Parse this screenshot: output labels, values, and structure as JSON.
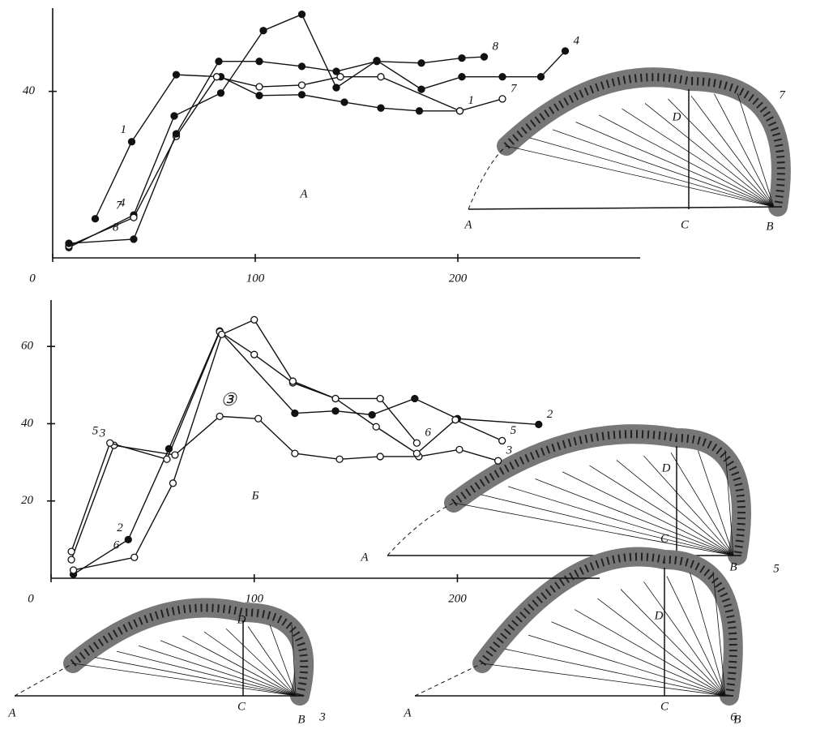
{
  "chart_data": [
    {
      "type": "line",
      "annotation": "A",
      "xlim": [
        0,
        290
      ],
      "ylim": [
        0,
        60
      ],
      "xticks": [
        0,
        100,
        200
      ],
      "yticks": [
        40
      ],
      "series": [
        {
          "name": "1",
          "color": "#111111",
          "marker": "filled",
          "x": [
            21,
            39,
            61,
            83,
            102,
            123,
            144,
            162,
            181,
            201
          ],
          "values": [
            9.4,
            27.9,
            44,
            43.5,
            39,
            39.2,
            37.4,
            36,
            35.3,
            35.3
          ]
        },
        {
          "name": "4",
          "color": "#111111",
          "marker": "filled",
          "x": [
            8,
            40,
            60,
            83,
            104,
            123,
            140,
            160,
            182,
            202,
            222,
            241,
            253
          ],
          "values": [
            2.5,
            10.3,
            34.1,
            39.6,
            54.6,
            58.5,
            40.9,
            47.4,
            40.5,
            43.5,
            43.5,
            43.5,
            49.7
          ]
        },
        {
          "name": "7",
          "color": "#111111",
          "marker": "open",
          "x": [
            8,
            40,
            61,
            81,
            102,
            123,
            142,
            162,
            201,
            222
          ],
          "values": [
            2.9,
            9.7,
            29.2,
            43.5,
            41.1,
            41.5,
            43.5,
            43.5,
            35.3,
            38.2
          ]
        },
        {
          "name": "8",
          "color": "#111111",
          "marker": "filled",
          "x": [
            8,
            40,
            61,
            82,
            102,
            123,
            140,
            160,
            182,
            202,
            213
          ],
          "values": [
            3.5,
            4.5,
            29.8,
            47.2,
            47.2,
            46,
            44.8,
            47.2,
            46.8,
            48,
            48.3
          ]
        }
      ]
    },
    {
      "type": "line",
      "annotation": "Б",
      "note": "③",
      "xlim": [
        0,
        270
      ],
      "ylim": [
        0,
        72
      ],
      "xticks": [
        0,
        100,
        200
      ],
      "yticks": [
        20,
        40,
        60
      ],
      "series": [
        {
          "name": "2",
          "color": "#111111",
          "marker": "filled",
          "x": [
            11,
            38,
            58,
            83,
            120,
            140,
            158,
            179,
            200,
            240
          ],
          "values": [
            1,
            10,
            33.5,
            64,
            42.7,
            43.3,
            42.3,
            46.5,
            41.3,
            39.8
          ]
        },
        {
          "name": "3",
          "color": "#111111",
          "marker": "open",
          "x": [
            10,
            31,
            61,
            83,
            102,
            120,
            142,
            162,
            181,
            201,
            220
          ],
          "values": [
            4.8,
            34.4,
            31.9,
            41.9,
            41.3,
            32.3,
            30.8,
            31.5,
            31.5,
            33.3,
            30.4
          ]
        },
        {
          "name": "5",
          "color": "#111111",
          "marker": "open",
          "x": [
            10,
            29,
            57,
            83,
            100,
            119,
            140,
            160,
            180,
            199,
            222
          ],
          "values": [
            6.9,
            35,
            30.8,
            63.8,
            57.9,
            50.6,
            46.5,
            39.2,
            32.3,
            41,
            35.6
          ]
        },
        {
          "name": "6",
          "color": "#111111",
          "marker": "open",
          "x": [
            11,
            41,
            60,
            84,
            100,
            119,
            140,
            162,
            180
          ],
          "values": [
            2.1,
            5.4,
            24.6,
            63.1,
            66.9,
            51,
            46.5,
            46.5,
            35
          ]
        }
      ]
    }
  ],
  "drawings": [
    {
      "labels": [
        "A",
        "C",
        "B",
        "D",
        "7"
      ]
    },
    {
      "labels": [
        "A",
        "C",
        "B",
        "D",
        "5"
      ]
    },
    {
      "labels": [
        "A",
        "C",
        "B",
        "D",
        "3"
      ]
    },
    {
      "labels": [
        "A",
        "C",
        "B",
        "D",
        "6"
      ]
    }
  ]
}
